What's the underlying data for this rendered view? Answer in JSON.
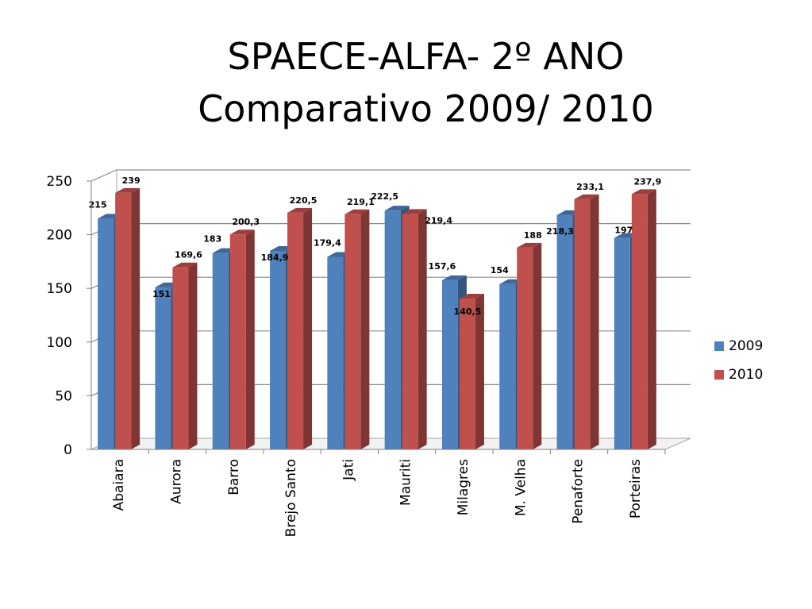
{
  "title_line1": "SPAECE-ALFA- 2º ANO",
  "title_line2": "Comparativo 2009/ 2010",
  "colors": {
    "s2009": "#4F81BD",
    "s2010": "#C0504D"
  },
  "chart_data": {
    "type": "bar",
    "categories": [
      "Abaiara",
      "Aurora",
      "Barro",
      "Brejo Santo",
      "Jati",
      "Mauriti",
      "Milagres",
      "M. Velha",
      "Penaforte",
      "Porteiras"
    ],
    "series": [
      {
        "name": "2009",
        "values": [
          215,
          151,
          183,
          184.9,
          179.4,
          222.5,
          157.6,
          154,
          218.3,
          197
        ],
        "labels": [
          "215",
          "151",
          "183",
          "184,9",
          "179,4",
          "222,5",
          "157,6",
          "154",
          "218,3",
          "197"
        ]
      },
      {
        "name": "2010",
        "values": [
          239,
          169.6,
          200.3,
          220.5,
          219.1,
          219.4,
          140.5,
          188,
          233.1,
          237.9
        ],
        "labels": [
          "239",
          "169,6",
          "200,3",
          "220,5",
          "219,1",
          "219,4",
          "140,5",
          "188",
          "233,1",
          "237,9"
        ]
      }
    ],
    "yticks": [
      "0",
      "50",
      "100",
      "150",
      "200",
      "250"
    ],
    "ylim": [
      0,
      250
    ],
    "grid": true,
    "legend": "right",
    "style": "3d-clustered-column"
  }
}
